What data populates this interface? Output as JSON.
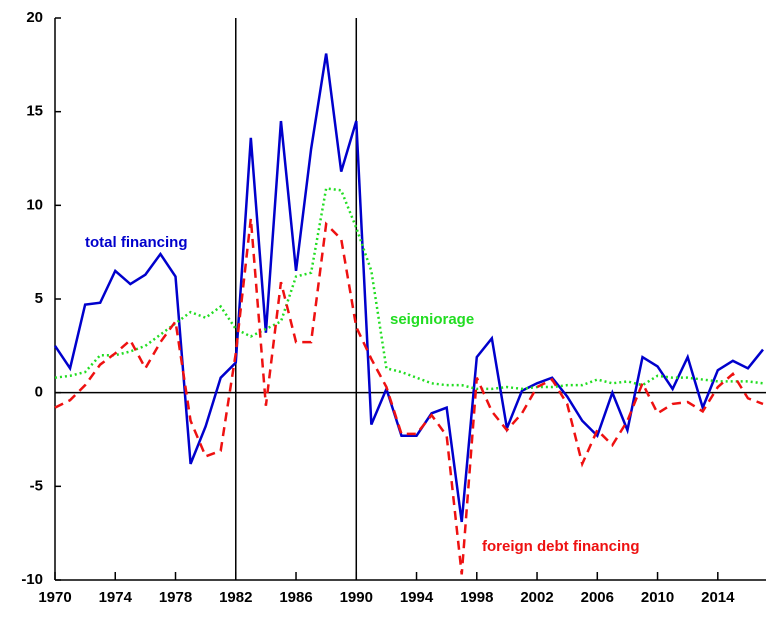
{
  "chart_data": {
    "type": "line",
    "x": [
      1970,
      1971,
      1972,
      1973,
      1974,
      1975,
      1976,
      1977,
      1978,
      1979,
      1980,
      1981,
      1982,
      1983,
      1984,
      1985,
      1986,
      1987,
      1988,
      1989,
      1990,
      1991,
      1992,
      1993,
      1994,
      1995,
      1996,
      1997,
      1998,
      1999,
      2000,
      2001,
      2002,
      2003,
      2004,
      2005,
      2006,
      2007,
      2008,
      2009,
      2010,
      2011,
      2012,
      2013,
      2014,
      2015,
      2016,
      2017
    ],
    "series": [
      {
        "name": "total financing",
        "color": "#0000cc",
        "style": "solid",
        "values": [
          2.5,
          1.3,
          4.7,
          4.8,
          6.5,
          5.8,
          6.3,
          7.4,
          6.2,
          -3.8,
          -1.8,
          0.8,
          1.6,
          13.6,
          3.2,
          14.5,
          6.5,
          13.0,
          18.1,
          11.8,
          14.5,
          -1.7,
          0.2,
          -2.3,
          -2.3,
          -1.1,
          -0.8,
          -6.9,
          1.9,
          2.9,
          -1.9,
          0.1,
          0.5,
          0.8,
          -0.2,
          -1.5,
          -2.3,
          0.0,
          -2.0,
          1.9,
          1.4,
          0.2,
          1.9,
          -0.8,
          1.2,
          1.7,
          1.3,
          2.3
        ]
      },
      {
        "name": "seigniorage",
        "color": "#22dd22",
        "style": "dotted",
        "values": [
          0.8,
          0.9,
          1.1,
          2.0,
          2.0,
          2.2,
          2.5,
          3.1,
          3.7,
          4.3,
          4.0,
          4.6,
          3.4,
          3.0,
          3.4,
          3.8,
          6.2,
          6.4,
          10.9,
          10.8,
          8.8,
          6.5,
          1.3,
          1.1,
          0.8,
          0.5,
          0.4,
          0.4,
          0.2,
          0.2,
          0.3,
          0.2,
          0.3,
          0.3,
          0.4,
          0.4,
          0.7,
          0.5,
          0.6,
          0.4,
          0.9,
          0.8,
          0.8,
          0.7,
          0.6,
          0.6,
          0.6,
          0.5
        ]
      },
      {
        "name": "foreign debt financing",
        "color": "#ee1111",
        "style": "dashed",
        "values": [
          -0.8,
          -0.4,
          0.4,
          1.5,
          2.1,
          2.8,
          1.3,
          2.7,
          3.8,
          -1.5,
          -3.4,
          -3.1,
          2.1,
          9.3,
          -0.7,
          5.9,
          2.7,
          2.7,
          9.0,
          8.2,
          3.5,
          1.8,
          0.3,
          -2.2,
          -2.2,
          -1.2,
          -2.3,
          -9.7,
          0.8,
          -1.0,
          -2.0,
          -1.1,
          0.3,
          0.7,
          -0.6,
          -3.8,
          -2.0,
          -2.8,
          -1.5,
          0.5,
          -1.1,
          -0.6,
          -0.5,
          -1.0,
          0.3,
          1.0,
          -0.3,
          -0.6
        ]
      }
    ],
    "xlim": [
      1970,
      2017
    ],
    "xticks": [
      1970,
      1974,
      1978,
      1982,
      1986,
      1990,
      1994,
      1998,
      2002,
      2006,
      2010,
      2014
    ],
    "ylim": [
      -10,
      20
    ],
    "yticks": [
      20,
      15,
      10,
      5,
      0,
      -5,
      -10
    ],
    "vlines": [
      1982,
      1990
    ],
    "hline": 0
  }
}
